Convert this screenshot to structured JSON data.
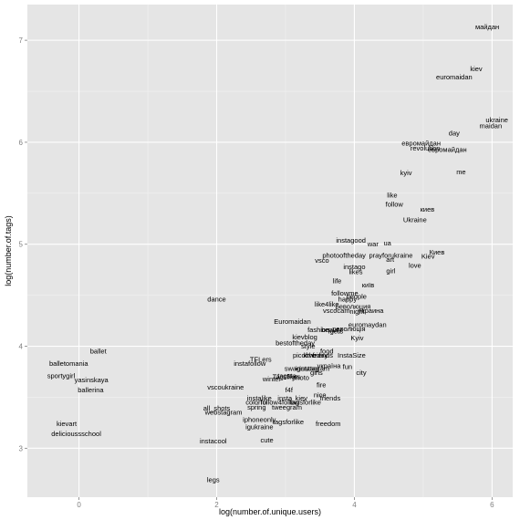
{
  "chart_data": {
    "type": "scatter",
    "xlabel": "log(number.of.unique.users)",
    "ylabel": "log(number.of.tags)",
    "xlim": [
      -0.75,
      6.3
    ],
    "ylim": [
      2.52,
      7.35
    ],
    "x_ticks": [
      0,
      2,
      4,
      6
    ],
    "y_ticks": [
      3,
      4,
      5,
      6,
      7
    ],
    "grid": true,
    "background": "#e5e5e5",
    "grid_color": "#ffffff",
    "points": [
      {
        "label": "майдан",
        "x": 5.93,
        "y": 7.13
      },
      {
        "label": "kiev",
        "x": 5.77,
        "y": 6.72
      },
      {
        "label": "euromaidan",
        "x": 5.45,
        "y": 6.64
      },
      {
        "label": "ukraine",
        "x": 6.07,
        "y": 6.22
      },
      {
        "label": "maidan",
        "x": 5.98,
        "y": 6.16
      },
      {
        "label": "day",
        "x": 5.45,
        "y": 6.09
      },
      {
        "label": "евромайдан",
        "x": 4.97,
        "y": 5.99
      },
      {
        "label": "revolution",
        "x": 5.03,
        "y": 5.94
      },
      {
        "label": "евромайдан",
        "x": 5.35,
        "y": 5.93
      },
      {
        "label": "me",
        "x": 5.55,
        "y": 5.71
      },
      {
        "label": "kyiv",
        "x": 4.75,
        "y": 5.7
      },
      {
        "label": "like",
        "x": 4.55,
        "y": 5.48
      },
      {
        "label": "follow",
        "x": 4.58,
        "y": 5.39
      },
      {
        "label": "киев",
        "x": 5.06,
        "y": 5.34
      },
      {
        "label": "Ukraine",
        "x": 4.88,
        "y": 5.24
      },
      {
        "label": "instagood",
        "x": 3.95,
        "y": 5.04
      },
      {
        "label": "war",
        "x": 4.27,
        "y": 5.0
      },
      {
        "label": "ua",
        "x": 4.48,
        "y": 5.01
      },
      {
        "label": "Киев",
        "x": 5.2,
        "y": 4.92
      },
      {
        "label": "photooftheday",
        "x": 3.85,
        "y": 4.89
      },
      {
        "label": "prayforukraine",
        "x": 4.53,
        "y": 4.89
      },
      {
        "label": "Kiev",
        "x": 5.07,
        "y": 4.88
      },
      {
        "label": "vsco",
        "x": 3.53,
        "y": 4.84
      },
      {
        "label": "art",
        "x": 4.52,
        "y": 4.85
      },
      {
        "label": "love",
        "x": 4.88,
        "y": 4.79
      },
      {
        "label": "instago",
        "x": 4.0,
        "y": 4.78
      },
      {
        "label": "likes",
        "x": 4.02,
        "y": 4.73
      },
      {
        "label": "girl",
        "x": 4.53,
        "y": 4.74
      },
      {
        "label": "life",
        "x": 3.75,
        "y": 4.64
      },
      {
        "label": "київ",
        "x": 4.2,
        "y": 4.6
      },
      {
        "label": "followme",
        "x": 3.86,
        "y": 4.52
      },
      {
        "label": "people",
        "x": 4.03,
        "y": 4.49
      },
      {
        "label": "happy",
        "x": 3.9,
        "y": 4.46
      },
      {
        "label": "like4like",
        "x": 3.6,
        "y": 4.41
      },
      {
        "label": "революция",
        "x": 3.98,
        "y": 4.39
      },
      {
        "label": "украина",
        "x": 4.24,
        "y": 4.35
      },
      {
        "label": "vscocam",
        "x": 3.74,
        "y": 4.35
      },
      {
        "label": "night",
        "x": 4.04,
        "y": 4.34
      },
      {
        "label": "dance",
        "x": 2.0,
        "y": 4.46
      },
      {
        "label": "Euromaidan",
        "x": 3.1,
        "y": 4.24
      },
      {
        "label": "euromaydan",
        "x": 4.19,
        "y": 4.21
      },
      {
        "label": "революція",
        "x": 3.92,
        "y": 4.17
      },
      {
        "label": "fashion",
        "x": 3.48,
        "y": 4.16
      },
      {
        "label": "beauty",
        "x": 3.67,
        "y": 4.16
      },
      {
        "label": "igers",
        "x": 3.73,
        "y": 4.15
      },
      {
        "label": "kievblog",
        "x": 3.28,
        "y": 4.09
      },
      {
        "label": "Kyiv",
        "x": 4.04,
        "y": 4.08
      },
      {
        "label": "bestoftheday",
        "x": 3.14,
        "y": 4.03
      },
      {
        "label": "style",
        "x": 3.33,
        "y": 4.0
      },
      {
        "label": "ballet",
        "x": 0.28,
        "y": 3.95
      },
      {
        "label": "food",
        "x": 3.6,
        "y": 3.95
      },
      {
        "label": "InstaSize",
        "x": 3.96,
        "y": 3.91
      },
      {
        "label": "love",
        "x": 3.35,
        "y": 3.91
      },
      {
        "label": "picoftheday",
        "x": 3.36,
        "y": 3.91
      },
      {
        "label": "friends",
        "x": 3.54,
        "y": 3.91
      },
      {
        "label": "TFLers",
        "x": 2.64,
        "y": 3.87
      },
      {
        "label": "balletomania",
        "x": -0.15,
        "y": 3.83
      },
      {
        "label": "instafollow",
        "x": 2.48,
        "y": 3.83
      },
      {
        "label": "україна",
        "x": 3.63,
        "y": 3.81
      },
      {
        "label": "fun",
        "x": 3.9,
        "y": 3.8
      },
      {
        "label": "swag",
        "x": 3.1,
        "y": 3.78
      },
      {
        "label": "instatag",
        "x": 3.32,
        "y": 3.78
      },
      {
        "label": "instagram",
        "x": 3.42,
        "y": 3.78
      },
      {
        "label": "city",
        "x": 4.1,
        "y": 3.74
      },
      {
        "label": "girls",
        "x": 3.45,
        "y": 3.74
      },
      {
        "label": "sportygirl",
        "x": -0.26,
        "y": 3.71
      },
      {
        "label": "yasinskaya",
        "x": 0.18,
        "y": 3.67
      },
      {
        "label": "winter",
        "x": 2.8,
        "y": 3.68
      },
      {
        "label": "Tagsf",
        "x": 2.93,
        "y": 3.7
      },
      {
        "label": "tagsta",
        "x": 3.02,
        "y": 3.71
      },
      {
        "label": "likes",
        "x": 3.12,
        "y": 3.7
      },
      {
        "label": "photo",
        "x": 3.22,
        "y": 3.69
      },
      {
        "label": "fire",
        "x": 3.52,
        "y": 3.62
      },
      {
        "label": "vscoukraine",
        "x": 2.13,
        "y": 3.6
      },
      {
        "label": "ballerina",
        "x": 0.17,
        "y": 3.57
      },
      {
        "label": "f4f",
        "x": 3.05,
        "y": 3.57
      },
      {
        "label": "nice",
        "x": 3.5,
        "y": 3.52
      },
      {
        "label": "instalike",
        "x": 2.62,
        "y": 3.49
      },
      {
        "label": "insta",
        "x": 2.99,
        "y": 3.49
      },
      {
        "label": "kiev",
        "x": 3.23,
        "y": 3.49
      },
      {
        "label": "friends",
        "x": 3.65,
        "y": 3.49
      },
      {
        "label": "colorful",
        "x": 2.58,
        "y": 3.45
      },
      {
        "label": "follow4follow",
        "x": 2.92,
        "y": 3.45
      },
      {
        "label": "tagsforlike",
        "x": 3.29,
        "y": 3.45
      },
      {
        "label": "spring",
        "x": 2.58,
        "y": 3.4
      },
      {
        "label": "tweegram",
        "x": 3.02,
        "y": 3.4
      },
      {
        "label": "all_shots",
        "x": 2.0,
        "y": 3.39
      },
      {
        "label": "webstagram",
        "x": 2.1,
        "y": 3.35
      },
      {
        "label": "iphoneonly",
        "x": 2.62,
        "y": 3.28
      },
      {
        "label": "tagsforlike",
        "x": 3.04,
        "y": 3.26
      },
      {
        "label": "freedom",
        "x": 3.62,
        "y": 3.24
      },
      {
        "label": "kievart",
        "x": -0.18,
        "y": 3.24
      },
      {
        "label": "igukraine",
        "x": 2.62,
        "y": 3.21
      },
      {
        "label": "delicioussschool",
        "x": -0.04,
        "y": 3.14
      },
      {
        "label": "instacool",
        "x": 1.95,
        "y": 3.07
      },
      {
        "label": "cute",
        "x": 2.73,
        "y": 3.08
      },
      {
        "label": "legs",
        "x": 1.95,
        "y": 2.69
      }
    ]
  }
}
